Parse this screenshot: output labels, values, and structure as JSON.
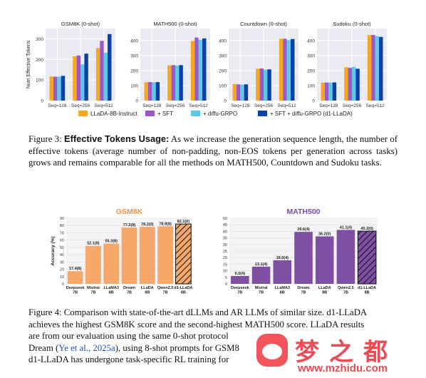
{
  "fig3": {
    "chart_data": [
      {
        "type": "bar",
        "title": "GSM8K (0-shot)",
        "ylabel": "Num Effective Tokens",
        "categories": [
          "Seq=128",
          "Seq=256",
          "Seq=512"
        ],
        "ylim": [
          0,
          350
        ],
        "yticks": [
          0,
          100,
          200,
          300
        ],
        "series": [
          {
            "name": "LLaDA-8B-Instruct",
            "values": [
              117,
              215,
              255
            ]
          },
          {
            "name": "+ SFT",
            "values": [
              116,
              219,
              290
            ]
          },
          {
            "name": "+ diffu-GRPO",
            "values": [
              116,
              176,
              232
            ]
          },
          {
            "name": "+ SFT + diffu-GRPO (d1-LLaDA)",
            "values": [
              120,
              228,
              323
            ]
          }
        ]
      },
      {
        "type": "bar",
        "title": "MATH500 (0-shot)",
        "categories": [
          "Seq=128",
          "Seq=256",
          "Seq=512"
        ],
        "ylim": [
          0,
          480
        ],
        "yticks": [
          0,
          100,
          200,
          300,
          400
        ],
        "series": [
          {
            "name": "LLaDA-8B-Instruct",
            "values": [
              122,
              234,
              398
            ]
          },
          {
            "name": "+ SFT",
            "values": [
              123,
              236,
              420
            ]
          },
          {
            "name": "+ diffu-GRPO",
            "values": [
              121,
              233,
              405
            ]
          },
          {
            "name": "+ SFT + diffu-GRPO (d1-LLaDA)",
            "values": [
              123,
              236,
              414
            ]
          }
        ]
      },
      {
        "type": "bar",
        "title": "Countdown (0-shot)",
        "categories": [
          "Seq=128",
          "Seq=256",
          "Seq=512"
        ],
        "ylim": [
          0,
          480
        ],
        "yticks": [
          0,
          100,
          200,
          300,
          400
        ],
        "series": [
          {
            "name": "LLaDA-8B-Instruct",
            "values": [
              110,
              212,
              412
            ]
          },
          {
            "name": "+ SFT",
            "values": [
              108,
              214,
              412
            ]
          },
          {
            "name": "+ diffu-GRPO",
            "values": [
              106,
              206,
              403
            ]
          },
          {
            "name": "+ SFT + diffu-GRPO (d1-LLaDA)",
            "values": [
              108,
              208,
              410
            ]
          }
        ]
      },
      {
        "type": "bar",
        "title": "Sudoku (0-shot)",
        "categories": [
          "Seq=128",
          "Seq=256",
          "Seq=512"
        ],
        "ylim": [
          0,
          480
        ],
        "yticks": [
          0,
          100,
          200,
          300,
          400
        ],
        "series": [
          {
            "name": "LLaDA-8B-Instruct",
            "values": [
              120,
              222,
              437
            ]
          },
          {
            "name": "+ SFT",
            "values": [
              120,
              218,
              437
            ]
          },
          {
            "name": "+ diffu-GRPO",
            "values": [
              119,
              225,
              430
            ]
          },
          {
            "name": "+ SFT + diffu-GRPO (d1-LLaDA)",
            "values": [
              121,
              212,
              424
            ]
          }
        ]
      }
    ],
    "colors": [
      "#f5a623",
      "#9b59c4",
      "#5cc8ea",
      "#0a3fa8"
    ],
    "legend": [
      {
        "label": "LLaDA-8B-Instruct"
      },
      {
        "label": "+ SFT"
      },
      {
        "label": "+ diffu-GRPO"
      },
      {
        "label": "+ SFT + diffu-GRPO (d1-LLaDA)"
      }
    ]
  },
  "fig3_caption": {
    "label": "Figure 3: ",
    "bold": "Effective Tokens Usage:",
    "text": " As we increase the generation sequence length, the number of effective tokens (average number of non-padding, non-EOS tokens per generation across tasks) grows and remains comparable for all the methods on MATH500, Countdown and Sudoku tasks."
  },
  "fig4": {
    "chart_data": [
      {
        "type": "bar",
        "title": "GSM8K",
        "ylabel": "Accuracy (%)",
        "ylim": [
          0,
          90
        ],
        "yticks": [
          0,
          10,
          20,
          30,
          40,
          50,
          60,
          70,
          80,
          90
        ],
        "categories": [
          "Deepseek\n7B",
          "Mistral\n7B",
          "LLaMA3\n8B",
          "Dream\n7B",
          "LLaDA\n8B",
          "Qwen2.5\n7B",
          "d1-LLaDA\n8B"
        ],
        "values": [
          17.4,
          52.1,
          55.3,
          77.2,
          78.2,
          78.9,
          82.1
        ],
        "data_labels": [
          "17.4(8)",
          "52.1(8)",
          "55.3(8)",
          "77.2(8)",
          "78.2(0)",
          "78.9(8)",
          "82.1(0)"
        ]
      },
      {
        "type": "bar",
        "title": "MATH500",
        "ylim": [
          0,
          50
        ],
        "yticks": [
          0,
          5,
          10,
          15,
          20,
          25,
          30,
          35,
          40,
          45,
          50
        ],
        "categories": [
          "Deepseek\n7B",
          "Mistral\n7B",
          "LLaMA3\n8B",
          "Dream\n7B",
          "LLaDA\n8B",
          "Qwen2.5\n7B",
          "d1-LLaDA\n8B"
        ],
        "values": [
          6.0,
          13.1,
          18.0,
          39.6,
          36.2,
          41.1,
          40.2
        ],
        "data_labels": [
          "6.0(4)",
          "13.1(4)",
          "18.0(4)",
          "39.6(4)",
          "36.2(0)",
          "41.1(4)",
          "40.2(0)"
        ]
      }
    ],
    "colors": {
      "gsm8k": "#f6a86a",
      "gsm8k_title": "#f5923e",
      "math": "#7e4fa3",
      "math_title": "#7a4aa6"
    }
  },
  "fig4_caption": {
    "line1": "Figure 4: Comparison with state-of-the-art dLLMs and AR LLMs of similar size. d1-LLaDA",
    "line2": "achieves the highest GSM8K score and the second-highest MATH500 score. LLaDA results",
    "line3": "are from our evaluation using the same 0-shot protocol",
    "line4a": "Dream (",
    "cite": "Ye et al., 2025a",
    "line4b": "), using 8-shot prompts for GSM8",
    "line5": "d1-LLaDA has undergone task-specific RL training for"
  },
  "watermark": {
    "title": "梦之都",
    "url": "www.mzhidu.com"
  }
}
